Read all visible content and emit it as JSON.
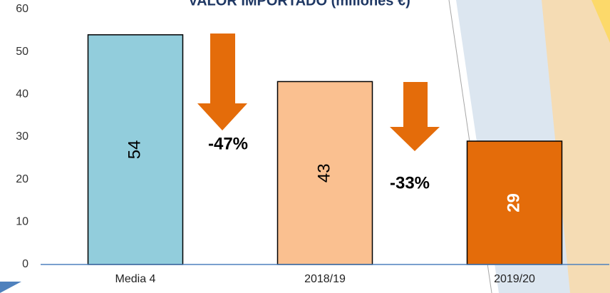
{
  "chart_data": {
    "type": "bar",
    "title": "VALOR IMPORTADO (millones €)",
    "categories": [
      "Media 4",
      "2018/19",
      "2019/20"
    ],
    "values": [
      54,
      43,
      29
    ],
    "colors": [
      "#92cddc",
      "#fac090",
      "#e46c0a"
    ],
    "ylim": [
      0,
      60
    ],
    "yticks": [
      0,
      10,
      20,
      30,
      40,
      50,
      60
    ],
    "grid": false,
    "annotations": [
      "-47%",
      "-33%"
    ]
  }
}
